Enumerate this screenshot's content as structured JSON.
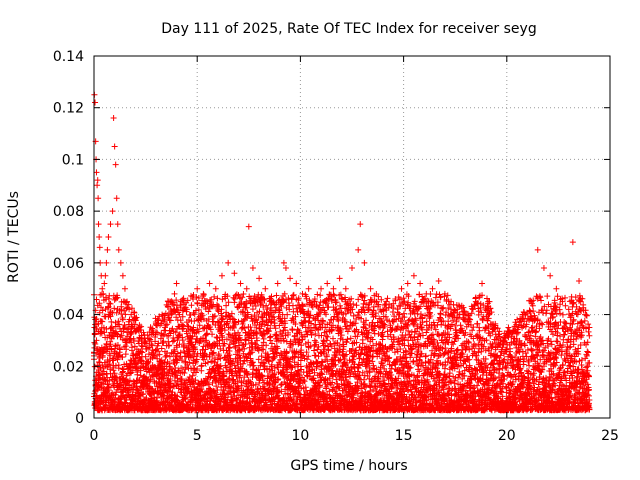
{
  "chart_data": {
    "type": "scatter",
    "title": "Day 111 of 2025, Rate Of TEC Index for receiver seyg",
    "xlabel": "GPS time / hours",
    "ylabel": "ROTI / TECUs",
    "xlim": [
      0,
      25
    ],
    "ylim": [
      0,
      0.14
    ],
    "xticks": [
      "0",
      "5",
      "10",
      "15",
      "20",
      "25"
    ],
    "yticks": [
      "0",
      "0.02",
      "0.04",
      "0.06",
      "0.08",
      "0.1",
      "0.12",
      "0.14"
    ],
    "grid": true,
    "marker": "plus",
    "color": "#ff0000",
    "series": [
      {
        "x": [
          0.02,
          0.05,
          0.08,
          0.1,
          0.12,
          0.15,
          0.18,
          0.2,
          0.22,
          0.25,
          0.28,
          0.3,
          0.35,
          0.4,
          0.45,
          0.5,
          0.55,
          0.6,
          0.65,
          0.7,
          0.8,
          0.9,
          0.95,
          1.0,
          1.05,
          1.1,
          1.15,
          1.2,
          1.3,
          1.4,
          1.5,
          1.6,
          1.7,
          1.8,
          2.0,
          2.2,
          2.4,
          2.6,
          2.8,
          3.0,
          3.3,
          3.6,
          3.9,
          4.0,
          4.2,
          4.5,
          4.8,
          5.0,
          5.3,
          5.6,
          5.9,
          6.2,
          6.5,
          6.8,
          7.1,
          7.4,
          7.5,
          7.7,
          8.0,
          8.3,
          8.6,
          8.9,
          9.2,
          9.3,
          9.5,
          9.8,
          10.1,
          10.4,
          10.7,
          11.0,
          11.3,
          11.6,
          11.9,
          12.2,
          12.5,
          12.8,
          12.9,
          13.1,
          13.4,
          13.7,
          14.0,
          14.3,
          14.6,
          14.9,
          15.2,
          15.5,
          15.8,
          16.1,
          16.4,
          16.7,
          17.0,
          17.3,
          17.6,
          17.9,
          18.2,
          18.5,
          18.8,
          19.1,
          19.4,
          19.7,
          20.0,
          20.3,
          20.6,
          20.9,
          21.2,
          21.5,
          21.8,
          22.1,
          22.4,
          22.7,
          23.0,
          23.2,
          23.5,
          23.8,
          24.0
        ],
        "y": [
          0.125,
          0.122,
          0.107,
          0.1,
          0.095,
          0.09,
          0.092,
          0.085,
          0.075,
          0.07,
          0.066,
          0.06,
          0.055,
          0.05,
          0.048,
          0.052,
          0.055,
          0.06,
          0.065,
          0.07,
          0.075,
          0.08,
          0.116,
          0.105,
          0.098,
          0.085,
          0.075,
          0.065,
          0.06,
          0.055,
          0.05,
          0.045,
          0.042,
          0.04,
          0.038,
          0.035,
          0.033,
          0.032,
          0.034,
          0.036,
          0.04,
          0.045,
          0.048,
          0.052,
          0.045,
          0.042,
          0.046,
          0.05,
          0.048,
          0.052,
          0.05,
          0.055,
          0.06,
          0.056,
          0.052,
          0.05,
          0.074,
          0.058,
          0.054,
          0.05,
          0.047,
          0.052,
          0.06,
          0.058,
          0.054,
          0.052,
          0.048,
          0.05,
          0.046,
          0.05,
          0.052,
          0.05,
          0.054,
          0.05,
          0.058,
          0.065,
          0.075,
          0.06,
          0.05,
          0.045,
          0.042,
          0.044,
          0.046,
          0.05,
          0.052,
          0.055,
          0.052,
          0.048,
          0.05,
          0.053,
          0.048,
          0.045,
          0.042,
          0.04,
          0.038,
          0.045,
          0.052,
          0.045,
          0.035,
          0.03,
          0.032,
          0.034,
          0.036,
          0.04,
          0.045,
          0.065,
          0.058,
          0.055,
          0.05,
          0.045,
          0.042,
          0.068,
          0.053,
          0.04,
          0.035
        ]
      }
    ]
  }
}
